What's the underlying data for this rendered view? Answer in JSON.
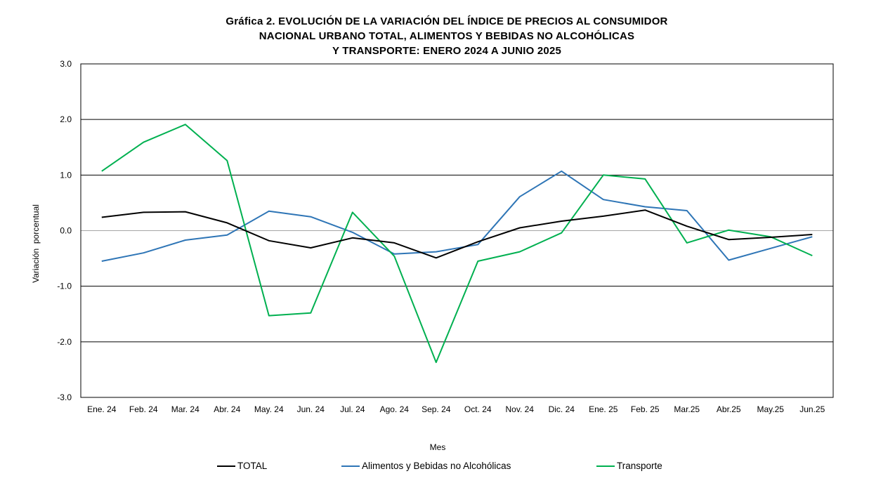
{
  "title": {
    "line1": "Gráfica 2. EVOLUCIÓN DE LA VARIACIÓN DEL ÍNDICE DE PRECIOS AL CONSUMIDOR",
    "line2": "NACIONAL URBANO TOTAL, ALIMENTOS Y BEBIDAS NO ALCOHÓLICAS",
    "line3": "Y TRANSPORTE: ENERO 2024 A JUNIO 2025"
  },
  "chart_data": {
    "type": "line",
    "title": "Gráfica 2. EVOLUCIÓN DE LA VARIACIÓN DEL ÍNDICE DE PRECIOS AL CONSUMIDOR NACIONAL URBANO TOTAL, ALIMENTOS Y BEBIDAS NO ALCOHÓLICAS Y TRANSPORTE: ENERO 2024 A JUNIO 2025",
    "xlabel": "Mes",
    "ylabel": "Variación  porcentual",
    "ylim": [
      -3.0,
      3.0
    ],
    "yticks": [
      "3.0",
      "2.0",
      "1.0",
      "0.0",
      "-1.0",
      "-2.0",
      "-3.0"
    ],
    "ytick_values": [
      3,
      2,
      1,
      0,
      -1,
      -2,
      -3
    ],
    "grid": true,
    "legend_position": "bottom",
    "categories": [
      "Ene. 24",
      "Feb. 24",
      "Mar. 24",
      "Abr. 24",
      "May. 24",
      "Jun. 24",
      "Jul. 24",
      "Ago. 24",
      "Sep. 24",
      "Oct. 24",
      "Nov. 24",
      "Dic. 24",
      "Ene. 25",
      "Feb. 25",
      "Mar.25",
      "Abr.25",
      "May.25",
      "Jun.25"
    ],
    "series": [
      {
        "name": "TOTAL",
        "color": "#000000",
        "values": [
          0.24,
          0.33,
          0.34,
          0.14,
          -0.18,
          -0.31,
          -0.13,
          -0.22,
          -0.49,
          -0.2,
          0.05,
          0.17,
          0.26,
          0.37,
          0.08,
          -0.16,
          -0.12,
          -0.07
        ]
      },
      {
        "name": "Alimentos y Bebidas no Alcohólicas",
        "color": "#2E75B6",
        "values": [
          -0.55,
          -0.4,
          -0.17,
          -0.08,
          0.35,
          0.25,
          -0.03,
          -0.42,
          -0.38,
          -0.25,
          0.61,
          1.07,
          0.56,
          0.43,
          0.36,
          -0.53,
          -0.32,
          -0.11
        ]
      },
      {
        "name": "Transporte",
        "color": "#00B050",
        "values": [
          1.07,
          1.59,
          1.91,
          1.26,
          -1.53,
          -1.48,
          0.33,
          -0.46,
          -2.37,
          -0.55,
          -0.38,
          -0.04,
          1.0,
          0.93,
          -0.22,
          0.01,
          -0.11,
          -0.45
        ]
      }
    ]
  }
}
